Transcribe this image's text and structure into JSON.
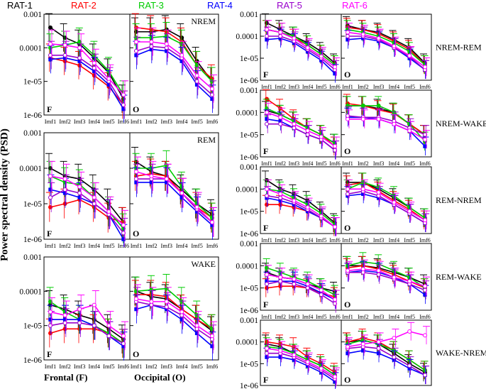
{
  "legend": [
    {
      "label": "RAT-1",
      "color": "#000000"
    },
    {
      "label": "RAT-2",
      "color": "#ff0000"
    },
    {
      "label": "RAT-3",
      "color": "#00cc00"
    },
    {
      "label": "RAT-4",
      "color": "#0000ff"
    },
    {
      "label": "RAT-5",
      "color": "#9900cc"
    },
    {
      "label": "RAT-6",
      "color": "#ff00ff"
    }
  ],
  "y_axis_label": "Power spectral density (PSD)",
  "footer": {
    "frontal": "Frontal (F)",
    "occipital": "Occipital (O)"
  },
  "chart_data": {
    "type": "line",
    "categories": [
      "Imf1",
      "Imf2",
      "Imf3",
      "Imf4",
      "Imf5",
      "Imf6"
    ],
    "yscale": "log",
    "ylim": [
      1e-06,
      0.001
    ],
    "y_ticks": [
      "0.001",
      "0.0001",
      "1e-05",
      "1e-06"
    ],
    "panel_groups": [
      {
        "title": "NREM",
        "frontal_label": "F",
        "occipital_label": "O",
        "frontal": {
          "RAT-1": [
            0.0004,
            0.0002,
            0.00013,
            5e-05,
            1.8e-05,
            3e-06
          ],
          "RAT-2": [
            5e-05,
            4e-05,
            3e-05,
            1.5e-05,
            7e-06,
            2e-06
          ],
          "RAT-3": [
            0.0001,
            0.00012,
            0.00015,
            6e-05,
            2e-05,
            4e-06
          ],
          "RAT-4": [
            4.5e-05,
            5e-05,
            4e-05,
            2e-05,
            8e-06,
            1.5e-06
          ],
          "RAT-5": [
            6e-05,
            6e-05,
            5e-05,
            2.5e-05,
            1e-05,
            2e-06
          ],
          "RAT-6": [
            0.00013,
            0.00012,
            0.0001,
            3.5e-05,
            1.2e-05,
            4e-06
          ]
        },
        "occipital": {
          "RAT-1": [
            0.0003,
            0.0003,
            0.00035,
            0.0002,
            4e-05,
            1e-05
          ],
          "RAT-2": [
            0.0004,
            0.00035,
            0.0003,
            0.00015,
            3e-05,
            1.2e-05
          ],
          "RAT-3": [
            0.0002,
            0.0002,
            0.00022,
            0.00013,
            3e-05,
            1e-05
          ],
          "RAT-4": [
            6e-05,
            9e-05,
            8e-05,
            4e-05,
            8e-06,
            3e-06
          ],
          "RAT-5": [
            8e-05,
            0.00011,
            0.0001,
            5e-05,
            1e-05,
            4e-06
          ],
          "RAT-6": [
            0.00015,
            0.00015,
            0.00013,
            6e-05,
            1.5e-05,
            6e-06
          ]
        }
      },
      {
        "title": "REM",
        "frontal_label": "F",
        "occipital_label": "O",
        "frontal": {
          "RAT-1": [
            0.0001,
            6e-05,
            5e-05,
            2.5e-05,
            1e-05,
            3e-06
          ],
          "RAT-2": [
            8e-06,
            1e-05,
            1.3e-05,
            8e-06,
            4e-06,
            3e-06
          ],
          "RAT-3": [
            6e-05,
            4e-05,
            3.5e-05,
            1.5e-05,
            6e-06,
            2e-06
          ],
          "RAT-4": [
            2.5e-05,
            2e-05,
            1.5e-05,
            1e-05,
            5e-06,
            1e-06
          ],
          "RAT-5": [
            1.5e-05,
            2.5e-05,
            2e-05,
            1e-05,
            5e-06,
            1.5e-06
          ],
          "RAT-6": [
            6e-05,
            5e-05,
            3e-05,
            1.5e-05,
            6e-06,
            2.5e-06
          ]
        },
        "occipital": {
          "RAT-1": [
            0.00015,
            8e-05,
            6e-05,
            2.5e-05,
            1e-05,
            5e-06
          ],
          "RAT-2": [
            6e-05,
            7e-05,
            6e-05,
            2e-05,
            8e-06,
            4e-06
          ],
          "RAT-3": [
            0.0001,
            0.0001,
            0.00012,
            3e-05,
            1e-05,
            4e-06
          ],
          "RAT-4": [
            4e-05,
            4e-05,
            4e-05,
            1.5e-05,
            6e-06,
            2.5e-06
          ],
          "RAT-5": [
            5e-05,
            5e-05,
            5e-05,
            2e-05,
            7e-06,
            3e-06
          ],
          "RAT-6": [
            8e-05,
            6e-05,
            5e-05,
            2e-05,
            8e-06,
            3e-06
          ]
        }
      },
      {
        "title": "WAKE",
        "frontal_label": "F",
        "occipital_label": "O",
        "frontal": {
          "RAT-1": [
            4e-05,
            3e-05,
            2e-05,
            1.5e-05,
            8e-06,
            4e-06
          ],
          "RAT-2": [
            6e-06,
            8e-06,
            8e-06,
            8e-06,
            6e-06,
            3e-06
          ],
          "RAT-3": [
            5e-05,
            2.5e-05,
            1.5e-05,
            1e-05,
            6e-06,
            3e-06
          ],
          "RAT-4": [
            1.5e-05,
            1.5e-05,
            1.5e-05,
            1e-05,
            5e-06,
            2.5e-06
          ],
          "RAT-5": [
            1e-05,
            1.2e-05,
            1.2e-05,
            1e-05,
            5e-06,
            3e-06
          ],
          "RAT-6": [
            2.5e-05,
            2e-05,
            3e-05,
            4e-05,
            1e-05,
            5e-06
          ]
        },
        "occipital": {
          "RAT-1": [
            0.0001,
            7e-05,
            6e-05,
            3e-05,
            1.5e-05,
            7e-06
          ],
          "RAT-2": [
            8e-05,
            8e-05,
            7e-05,
            3e-05,
            1.5e-05,
            8e-06
          ],
          "RAT-3": [
            0.0001,
            0.00011,
            0.00012,
            5e-05,
            2e-05,
            8e-06
          ],
          "RAT-4": [
            3e-05,
            4e-05,
            3e-05,
            1.5e-05,
            6e-06,
            2.5e-06
          ],
          "RAT-5": [
            5e-05,
            4e-05,
            3.5e-05,
            2e-05,
            8e-06,
            4e-06
          ],
          "RAT-6": [
            6e-05,
            5e-05,
            5e-05,
            2.5e-05,
            1e-05,
            5e-06
          ]
        }
      },
      {
        "title": "NREM-REM",
        "frontal_label": "F",
        "occipital_label": "O",
        "frontal": {
          "RAT-1": [
            0.0004,
            0.0002,
            0.0001,
            5e-05,
            2e-05,
            6e-06
          ],
          "RAT-2": [
            0.0002,
            0.00015,
            8e-05,
            4e-05,
            1.5e-05,
            5e-06
          ],
          "RAT-3": [
            0.0002,
            0.00015,
            0.0001,
            4e-05,
            1.5e-05,
            5e-06
          ],
          "RAT-4": [
            7e-05,
            8e-05,
            5e-05,
            2e-05,
            8e-06,
            2e-06
          ],
          "RAT-5": [
            0.0001,
            0.0001,
            6e-05,
            2.5e-05,
            1e-05,
            3e-06
          ],
          "RAT-6": [
            0.0002,
            0.00015,
            8e-05,
            3e-05,
            1.2e-05,
            4e-06
          ]
        },
        "occipital": {
          "RAT-1": [
            0.0003,
            0.0002,
            0.00015,
            7e-05,
            3e-05,
            6e-06
          ],
          "RAT-2": [
            0.00025,
            0.0002,
            0.00013,
            6e-05,
            2.5e-05,
            5e-06
          ],
          "RAT-3": [
            0.0002,
            0.00015,
            0.0001,
            5e-05,
            2e-05,
            5e-06
          ],
          "RAT-4": [
            7e-05,
            8e-05,
            6e-05,
            3e-05,
            1e-05,
            3e-06
          ],
          "RAT-5": [
            0.0001,
            0.0001,
            7e-05,
            3e-05,
            1.2e-05,
            3e-06
          ],
          "RAT-6": [
            0.00015,
            0.00012,
            8e-05,
            3.5e-05,
            1.3e-05,
            4e-06
          ]
        }
      },
      {
        "title": "NREM-WAKE",
        "frontal_label": "F",
        "occipital_label": "O",
        "frontal": {
          "RAT-1": [
            0.00012,
            8e-05,
            4e-05,
            2e-05,
            1e-05,
            4e-06
          ],
          "RAT-2": [
            0.0004,
            0.00015,
            5e-05,
            2e-05,
            1e-05,
            3e-06
          ],
          "RAT-3": [
            0.00015,
            8e-05,
            4e-05,
            2e-05,
            1e-05,
            4e-06
          ],
          "RAT-4": [
            5e-05,
            4e-05,
            2e-05,
            1e-05,
            6e-06,
            2e-06
          ],
          "RAT-5": [
            3e-05,
            3e-05,
            2e-05,
            1e-05,
            6e-06,
            2e-06
          ],
          "RAT-6": [
            0.0001,
            6e-05,
            3e-05,
            1.5e-05,
            8e-06,
            3e-06
          ]
        },
        "occipital": {
          "RAT-1": [
            0.0002,
            0.0002,
            0.00015,
            0.0001,
            3e-05,
            1e-05
          ],
          "RAT-2": [
            0.00025,
            0.0002,
            0.00013,
            9e-05,
            3e-05,
            1e-05
          ],
          "RAT-3": [
            0.0002,
            0.0002,
            0.0002,
            0.0001,
            3e-05,
            5e-06
          ],
          "RAT-4": [
            6e-05,
            6e-05,
            5e-05,
            3e-05,
            1.5e-05,
            3e-06
          ],
          "RAT-5": [
            7e-05,
            6e-05,
            6e-05,
            4e-05,
            2e-05,
            1e-05
          ],
          "RAT-6": [
            5e-05,
            5e-05,
            5e-05,
            3e-05,
            1.5e-05,
            6e-06
          ]
        }
      },
      {
        "title": "REM-NREM",
        "frontal_label": "F",
        "occipital_label": "O",
        "frontal": {
          "RAT-1": [
            0.00025,
            0.0001,
            6e-05,
            3e-05,
            1e-05,
            3e-06
          ],
          "RAT-2": [
            2e-05,
            2e-05,
            1.5e-05,
            1e-05,
            5e-06,
            2e-06
          ],
          "RAT-3": [
            0.0001,
            8e-05,
            4e-05,
            2e-05,
            8e-06,
            2.5e-06
          ],
          "RAT-4": [
            4e-05,
            3e-05,
            2e-05,
            1e-05,
            5e-06,
            2e-06
          ],
          "RAT-5": [
            5e-05,
            4e-05,
            2.5e-05,
            1.2e-05,
            5e-06,
            2e-06
          ],
          "RAT-6": [
            0.0001,
            6e-05,
            3e-05,
            1.5e-05,
            6e-06,
            2e-06
          ]
        },
        "occipital": {
          "RAT-1": [
            0.0002,
            0.0002,
            0.0001,
            4e-05,
            1.5e-05,
            5e-06
          ],
          "RAT-2": [
            0.00015,
            0.0002,
            8e-05,
            3e-05,
            1.2e-05,
            4e-06
          ],
          "RAT-3": [
            0.0001,
            0.0002,
            0.00012,
            5e-05,
            1.5e-05,
            5e-06
          ],
          "RAT-4": [
            5e-05,
            6e-05,
            4e-05,
            2e-05,
            8e-06,
            3e-06
          ],
          "RAT-5": [
            6e-05,
            8e-05,
            5e-05,
            2e-05,
            8e-06,
            3e-06
          ],
          "RAT-6": [
            0.0001,
            0.0001,
            7e-05,
            2.5e-05,
            1e-05,
            4e-06
          ]
        }
      },
      {
        "title": "REM-WAKE",
        "frontal_label": "F",
        "occipital_label": "O",
        "frontal": {
          "RAT-1": [
            5e-05,
            3e-05,
            2.5e-05,
            1.5e-05,
            1e-05,
            7e-06
          ],
          "RAT-2": [
            1e-05,
            1.2e-05,
            1.2e-05,
            1e-05,
            6e-06,
            4e-06
          ],
          "RAT-3": [
            8e-05,
            5e-05,
            3e-05,
            2e-05,
            1e-05,
            5e-06
          ],
          "RAT-4": [
            2e-05,
            2e-05,
            2e-05,
            1.2e-05,
            6e-06,
            3e-06
          ],
          "RAT-5": [
            1.5e-05,
            2e-05,
            1.5e-05,
            1e-05,
            5e-06,
            2e-06
          ],
          "RAT-6": [
            4e-05,
            3e-05,
            2.5e-05,
            1.5e-05,
            8e-06,
            3e-06
          ]
        },
        "occipital": {
          "RAT-1": [
            0.0001,
            0.0001,
            8e-05,
            5e-05,
            3e-05,
            1.5e-05
          ],
          "RAT-2": [
            8e-05,
            0.0001,
            7e-05,
            4e-05,
            2e-05,
            1e-05
          ],
          "RAT-3": [
            0.0001,
            0.00015,
            0.00012,
            6e-05,
            3e-05,
            1e-05
          ],
          "RAT-4": [
            5e-05,
            6e-05,
            5e-05,
            3e-05,
            1.5e-05,
            5e-06
          ],
          "RAT-5": [
            5e-05,
            5e-05,
            4e-05,
            2.5e-05,
            1.5e-05,
            8e-06
          ],
          "RAT-6": [
            6e-05,
            7e-05,
            6e-05,
            3e-05,
            2e-05,
            1.2e-05
          ]
        }
      },
      {
        "title": "WAKE-NREM",
        "frontal_label": "F",
        "occipital_label": "O",
        "frontal": {
          "RAT-1": [
            8e-05,
            6e-05,
            3e-05,
            1.5e-05,
            8e-06,
            3e-06
          ],
          "RAT-2": [
            0.0001,
            8e-05,
            6e-05,
            2e-05,
            1e-05,
            4e-06
          ],
          "RAT-3": [
            6e-05,
            5e-05,
            3e-05,
            1.5e-05,
            8e-06,
            3e-06
          ],
          "RAT-4": [
            2e-05,
            2e-05,
            1.5e-05,
            8e-06,
            4e-06,
            1.5e-06
          ],
          "RAT-5": [
            3e-05,
            3e-05,
            2e-05,
            1e-05,
            5e-06,
            2e-06
          ],
          "RAT-6": [
            5e-05,
            4e-05,
            2.5e-05,
            1.2e-05,
            6e-06,
            2.5e-06
          ]
        },
        "occipital": {
          "RAT-1": [
            0.0001,
            0.00012,
            8e-05,
            3e-05,
            1e-05,
            4e-06
          ],
          "RAT-2": [
            0.0001,
            0.00015,
            0.0001,
            4e-05,
            1.5e-05,
            5e-06
          ],
          "RAT-3": [
            8e-05,
            0.00012,
            8e-05,
            4e-05,
            1.5e-05,
            5e-06
          ],
          "RAT-4": [
            3e-05,
            4e-05,
            3e-05,
            1.5e-05,
            6e-06,
            3e-06
          ],
          "RAT-5": [
            5e-05,
            6e-05,
            5e-05,
            2e-05,
            8e-06,
            3e-06
          ],
          "RAT-6": [
            6e-05,
            8e-05,
            0.0001,
            0.00015,
            0.0003,
            0.0002
          ]
        }
      }
    ]
  }
}
